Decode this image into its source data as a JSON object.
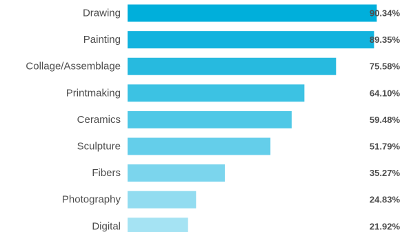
{
  "chart_data": {
    "type": "bar",
    "orientation": "horizontal",
    "categories": [
      "Drawing",
      "Painting",
      "Collage/Assemblage",
      "Printmaking",
      "Ceramics",
      "Sculpture",
      "Fibers",
      "Photography",
      "Digital"
    ],
    "values": [
      90.34,
      89.35,
      75.58,
      64.1,
      59.48,
      51.79,
      35.27,
      24.83,
      21.92
    ],
    "value_labels": [
      "90.34%",
      "89.35%",
      "75.58%",
      "64.10%",
      "59.48%",
      "51.79%",
      "35.27%",
      "24.83%",
      "21.92%"
    ],
    "colors": [
      "#00afdb",
      "#12b3de",
      "#27badf",
      "#3cc2e3",
      "#4fc8e6",
      "#64ceea",
      "#7bd5ed",
      "#92dcf0",
      "#a5e3f3"
    ],
    "title": "",
    "xlabel": "",
    "ylabel": "",
    "xlim": [
      0,
      100
    ],
    "grid": false,
    "legend": "none"
  }
}
